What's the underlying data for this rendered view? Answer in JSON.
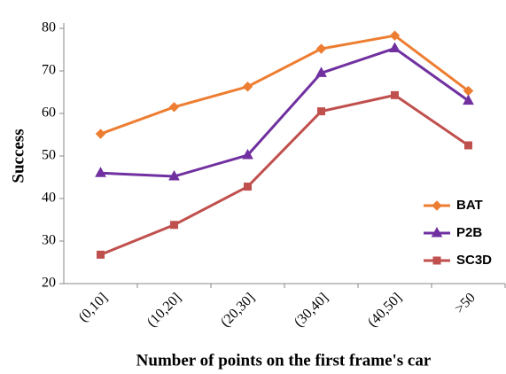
{
  "chart_data": {
    "type": "line",
    "xlabel": "Number of points on the first frame's car",
    "ylabel": "Success",
    "categories": [
      "(0,10]",
      "(10,20]",
      "(20,30]",
      "(30,40]",
      "(40,50]",
      ">50"
    ],
    "series": [
      {
        "name": "BAT",
        "color": "#ed7d31",
        "marker": "diamond",
        "values": [
          55.2,
          61.5,
          66.3,
          75.2,
          78.3,
          65.3
        ]
      },
      {
        "name": "P2B",
        "color": "#7030a0",
        "marker": "triangle",
        "values": [
          46,
          45.2,
          50.2,
          69.5,
          75.3,
          63
        ]
      },
      {
        "name": "SC3D",
        "color": "#c0504d",
        "marker": "square",
        "values": [
          26.8,
          33.8,
          42.8,
          60.5,
          64.3,
          52.5
        ]
      }
    ],
    "ylim": [
      20,
      80
    ],
    "yticks": [
      20,
      30,
      40,
      50,
      60,
      70,
      80
    ],
    "grid": false,
    "legend": "lower right"
  }
}
